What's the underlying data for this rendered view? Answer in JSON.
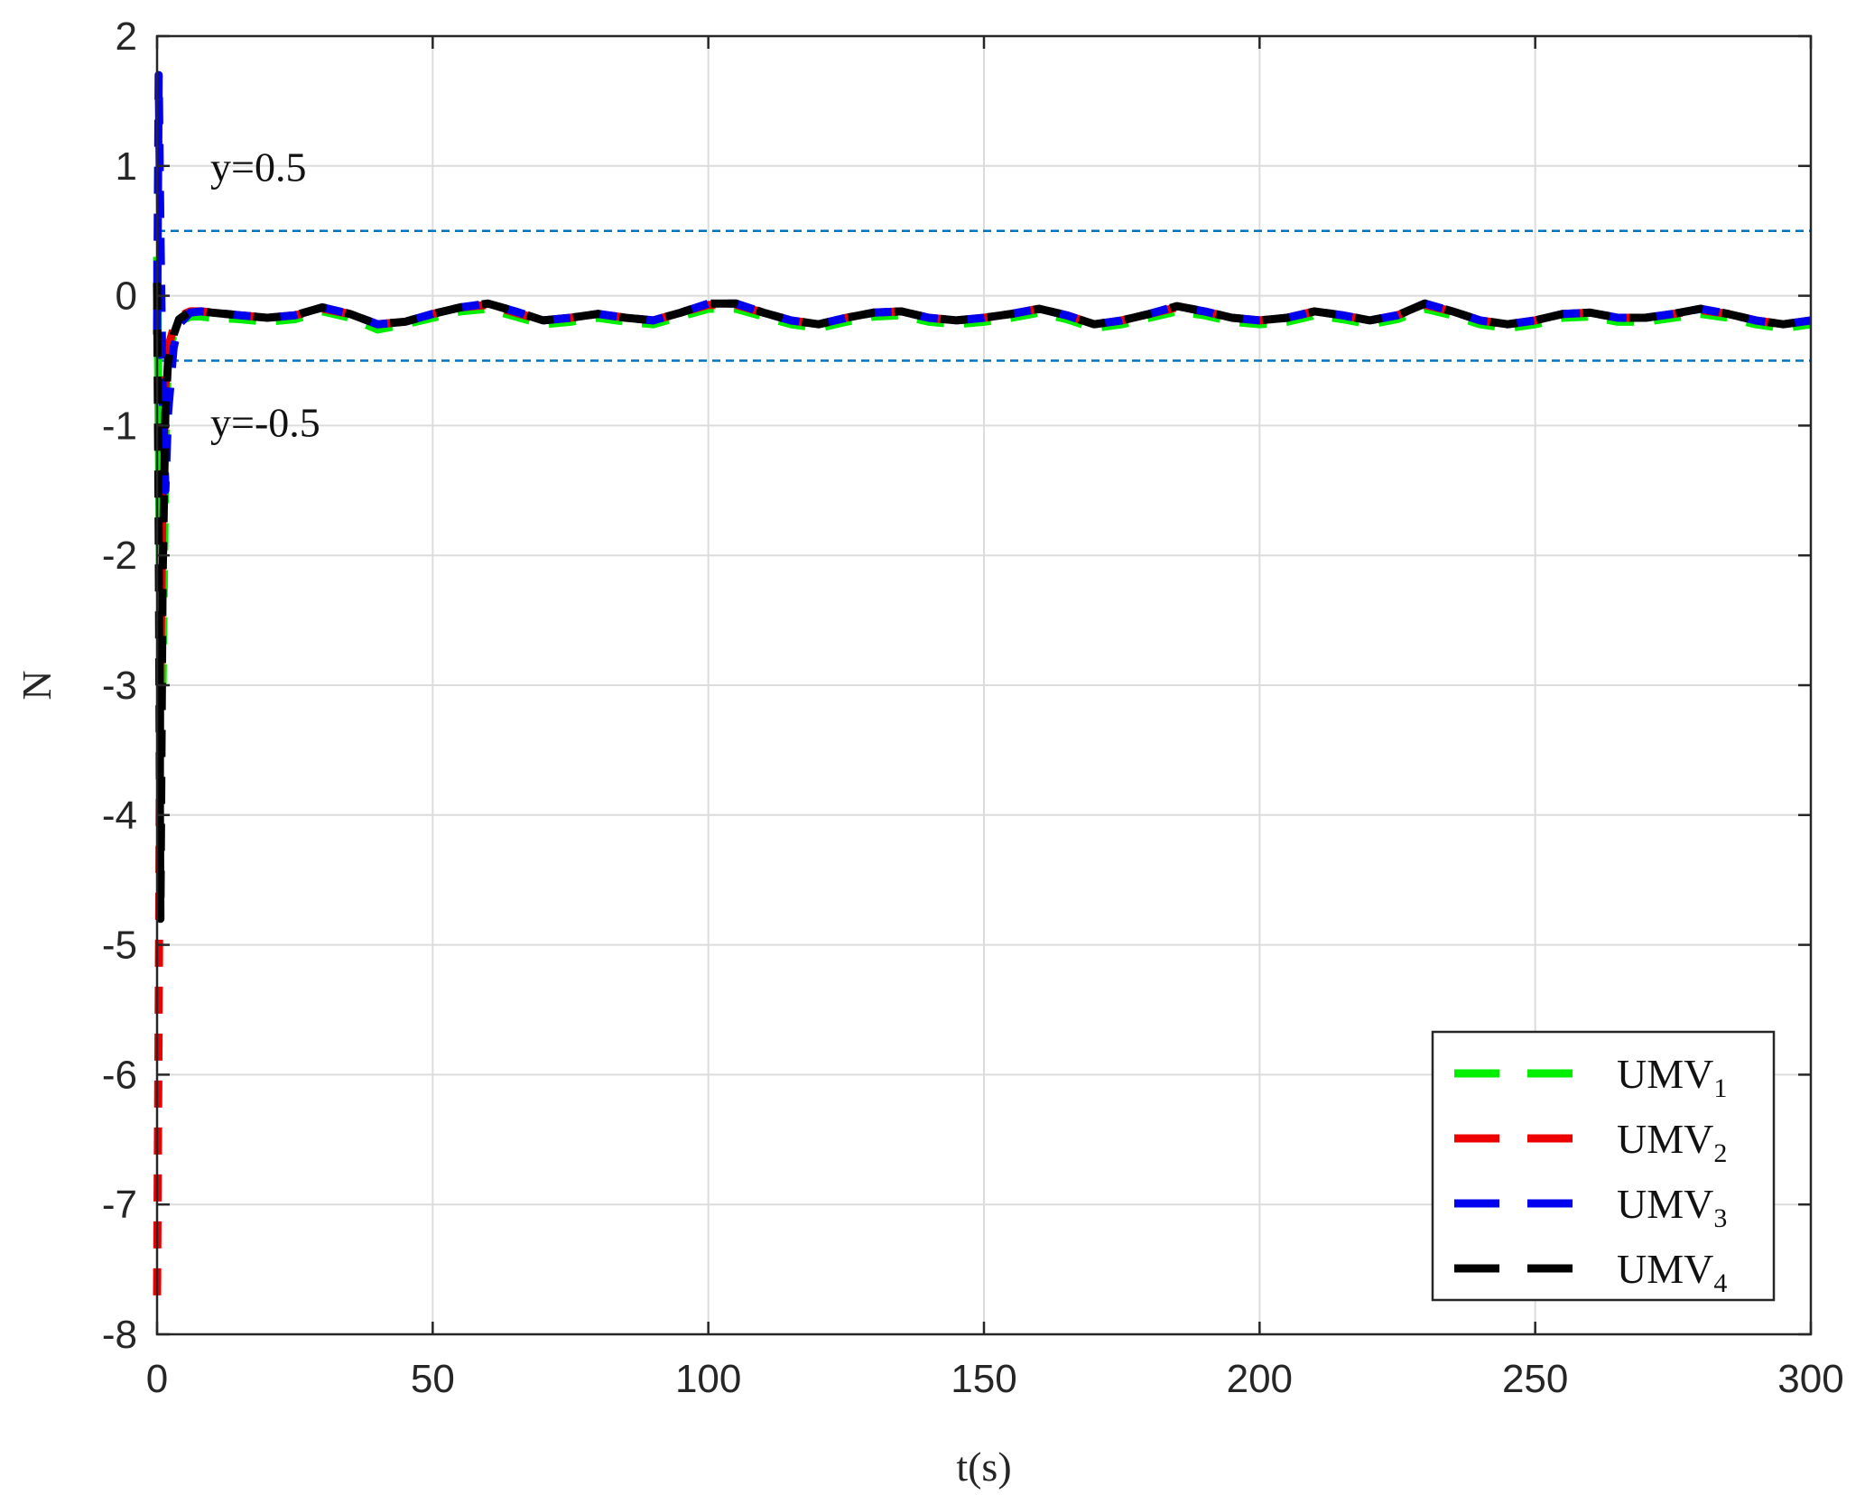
{
  "chart_data": {
    "type": "line",
    "xlabel": "t(s)",
    "ylabel": "N",
    "xlim": [
      0,
      300
    ],
    "ylim": [
      -8,
      2
    ],
    "xticks": [
      0,
      50,
      100,
      150,
      200,
      250,
      300
    ],
    "yticks": [
      2,
      1,
      0,
      -1,
      -2,
      -3,
      -4,
      -5,
      -6,
      -7,
      -8
    ],
    "grid": true,
    "legend_position": "bottom-right",
    "reference_lines": [
      {
        "y": 0.5,
        "label": "y=0.5",
        "color": "#0072BD"
      },
      {
        "y": -0.5,
        "label": "y=-0.5",
        "color": "#0072BD"
      }
    ],
    "series": [
      {
        "name": "UMV1",
        "name_base": "UMV",
        "name_sub": "1",
        "color": "#00ee00",
        "x": [
          0,
          0.3,
          0.6,
          1,
          1.5,
          2,
          3,
          4,
          6,
          8,
          10,
          15,
          20,
          25,
          30,
          35,
          40,
          45,
          50,
          55,
          60,
          65,
          70,
          75,
          80,
          85,
          90,
          95,
          100,
          105,
          110,
          115,
          120,
          125,
          130,
          135,
          140,
          145,
          150,
          155,
          160,
          165,
          170,
          175,
          180,
          185,
          190,
          195,
          200,
          205,
          210,
          215,
          220,
          225,
          230,
          235,
          240,
          245,
          250,
          255,
          260,
          265,
          270,
          275,
          280,
          285,
          290,
          295,
          300
        ],
        "y": [
          0.3,
          -1.0,
          -2.5,
          -3.0,
          -1.2,
          -0.45,
          -0.3,
          -0.2,
          -0.16,
          -0.16,
          -0.17,
          -0.18,
          -0.2,
          -0.18,
          -0.12,
          -0.17,
          -0.26,
          -0.22,
          -0.17,
          -0.12,
          -0.1,
          -0.16,
          -0.22,
          -0.2,
          -0.17,
          -0.2,
          -0.22,
          -0.16,
          -0.1,
          -0.1,
          -0.16,
          -0.22,
          -0.25,
          -0.2,
          -0.16,
          -0.15,
          -0.2,
          -0.22,
          -0.2,
          -0.17,
          -0.13,
          -0.18,
          -0.25,
          -0.22,
          -0.17,
          -0.12,
          -0.15,
          -0.2,
          -0.22,
          -0.2,
          -0.15,
          -0.18,
          -0.22,
          -0.18,
          -0.1,
          -0.15,
          -0.22,
          -0.25,
          -0.22,
          -0.17,
          -0.16,
          -0.2,
          -0.2,
          -0.17,
          -0.14,
          -0.17,
          -0.22,
          -0.25,
          -0.22
        ]
      },
      {
        "name": "UMV2",
        "name_base": "UMV",
        "name_sub": "2",
        "color": "#ee0000",
        "x": [
          0,
          0.3,
          0.6,
          1,
          1.5,
          2,
          3,
          4,
          6,
          8,
          10,
          15,
          20,
          25,
          30,
          35,
          40,
          45,
          50,
          55,
          60,
          65,
          70,
          75,
          80,
          85,
          90,
          95,
          100,
          105,
          110,
          115,
          120,
          125,
          130,
          135,
          140,
          145,
          150,
          155,
          160,
          165,
          170,
          175,
          180,
          185,
          190,
          195,
          200,
          205,
          210,
          215,
          220,
          225,
          230,
          235,
          240,
          245,
          250,
          255,
          260,
          265,
          270,
          275,
          280,
          285,
          290,
          295,
          300
        ],
        "y": [
          -7.7,
          -5.5,
          -3.0,
          -1.5,
          -0.7,
          -0.4,
          -0.25,
          -0.16,
          -0.12,
          -0.12,
          -0.13,
          -0.15,
          -0.17,
          -0.15,
          -0.1,
          -0.14,
          -0.22,
          -0.2,
          -0.14,
          -0.09,
          -0.07,
          -0.13,
          -0.19,
          -0.17,
          -0.14,
          -0.17,
          -0.19,
          -0.13,
          -0.07,
          -0.07,
          -0.13,
          -0.19,
          -0.22,
          -0.17,
          -0.13,
          -0.12,
          -0.17,
          -0.19,
          -0.17,
          -0.14,
          -0.1,
          -0.15,
          -0.22,
          -0.19,
          -0.14,
          -0.09,
          -0.12,
          -0.17,
          -0.19,
          -0.17,
          -0.12,
          -0.15,
          -0.19,
          -0.15,
          -0.07,
          -0.12,
          -0.19,
          -0.22,
          -0.19,
          -0.14,
          -0.13,
          -0.17,
          -0.17,
          -0.14,
          -0.11,
          -0.14,
          -0.19,
          -0.22,
          -0.19
        ]
      },
      {
        "name": "UMV3",
        "name_base": "UMV",
        "name_sub": "3",
        "color": "#0000ee",
        "x": [
          0,
          0.3,
          0.6,
          1,
          1.5,
          2,
          3,
          4,
          6,
          8,
          10,
          15,
          20,
          25,
          30,
          35,
          40,
          45,
          50,
          55,
          60,
          65,
          70,
          75,
          80,
          85,
          90,
          95,
          100,
          105,
          110,
          115,
          120,
          125,
          130,
          135,
          140,
          145,
          150,
          155,
          160,
          165,
          170,
          175,
          180,
          185,
          190,
          195,
          200,
          205,
          210,
          215,
          220,
          225,
          230,
          235,
          240,
          245,
          250,
          255,
          260,
          265,
          270,
          275,
          280,
          285,
          290,
          295,
          300
        ],
        "y": [
          -0.3,
          1.7,
          0.5,
          -0.7,
          -1.5,
          -0.9,
          -0.4,
          -0.22,
          -0.13,
          -0.12,
          -0.13,
          -0.15,
          -0.17,
          -0.15,
          -0.09,
          -0.14,
          -0.22,
          -0.2,
          -0.14,
          -0.09,
          -0.06,
          -0.12,
          -0.19,
          -0.17,
          -0.14,
          -0.17,
          -0.19,
          -0.13,
          -0.06,
          -0.06,
          -0.13,
          -0.19,
          -0.22,
          -0.17,
          -0.13,
          -0.12,
          -0.17,
          -0.19,
          -0.17,
          -0.14,
          -0.1,
          -0.15,
          -0.22,
          -0.19,
          -0.14,
          -0.08,
          -0.12,
          -0.17,
          -0.19,
          -0.17,
          -0.12,
          -0.15,
          -0.19,
          -0.15,
          -0.06,
          -0.12,
          -0.19,
          -0.22,
          -0.19,
          -0.14,
          -0.13,
          -0.17,
          -0.17,
          -0.14,
          -0.1,
          -0.14,
          -0.19,
          -0.22,
          -0.19
        ]
      },
      {
        "name": "UMV4",
        "name_base": "UMV",
        "name_sub": "4",
        "color": "#000000",
        "x": [
          0,
          0.3,
          0.6,
          1,
          1.5,
          2,
          3,
          4,
          6,
          8,
          10,
          15,
          20,
          25,
          30,
          35,
          40,
          45,
          50,
          55,
          60,
          65,
          70,
          75,
          80,
          85,
          90,
          95,
          100,
          105,
          110,
          115,
          120,
          125,
          130,
          135,
          140,
          145,
          150,
          155,
          160,
          165,
          170,
          175,
          180,
          185,
          190,
          195,
          200,
          205,
          210,
          215,
          220,
          225,
          230,
          235,
          240,
          245,
          250,
          255,
          260,
          265,
          270,
          275,
          280,
          285,
          290,
          295,
          300
        ],
        "y": [
          0.1,
          -1.8,
          -4.8,
          -2.2,
          -0.9,
          -0.5,
          -0.3,
          -0.18,
          -0.12,
          -0.12,
          -0.13,
          -0.15,
          -0.17,
          -0.15,
          -0.09,
          -0.14,
          -0.22,
          -0.2,
          -0.14,
          -0.09,
          -0.06,
          -0.12,
          -0.19,
          -0.17,
          -0.14,
          -0.17,
          -0.19,
          -0.13,
          -0.06,
          -0.06,
          -0.13,
          -0.19,
          -0.22,
          -0.17,
          -0.13,
          -0.12,
          -0.17,
          -0.19,
          -0.17,
          -0.14,
          -0.1,
          -0.15,
          -0.22,
          -0.19,
          -0.14,
          -0.08,
          -0.12,
          -0.17,
          -0.19,
          -0.17,
          -0.12,
          -0.15,
          -0.19,
          -0.15,
          -0.06,
          -0.12,
          -0.19,
          -0.22,
          -0.19,
          -0.14,
          -0.13,
          -0.17,
          -0.17,
          -0.14,
          -0.1,
          -0.14,
          -0.19,
          -0.22,
          -0.19
        ]
      }
    ]
  }
}
